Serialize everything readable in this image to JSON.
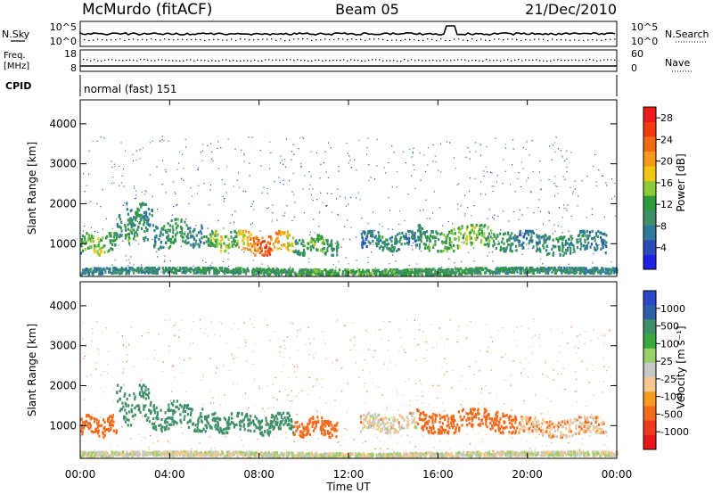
{
  "header": {
    "station": "McMurdo (fitACF)",
    "beam": "Beam 05",
    "date": "21/Dec/2010"
  },
  "summary": {
    "nsky_label": "N.Sky",
    "nsky_ticks": [
      "10^5",
      "10^0"
    ],
    "nsearch_label": "N.Search",
    "nsearch_ticks": [
      "10^5",
      "10^0"
    ],
    "freq_label": "Freq.",
    "freq_unit": "[MHz]",
    "freq_ticks": [
      "18",
      "8"
    ],
    "nave_label": "Nave",
    "nave_ticks": [
      "60",
      "0"
    ],
    "cpid_label": "CPID",
    "cpid_value": "normal (fast) 151"
  },
  "colors": {
    "power_scale": [
      "#1f1fe6",
      "#2b4bb8",
      "#2d7a9c",
      "#3f8f6a",
      "#2e9a3c",
      "#8acb3a",
      "#f2c80f",
      "#f59a1a",
      "#f26a14",
      "#f23c10",
      "#ee1a1a"
    ],
    "velocity_scale": [
      "#e81818",
      "#f03a1e",
      "#f36a1c",
      "#f79a22",
      "#f6c890",
      "#c8c8c8",
      "#9ad06a",
      "#3aa83a",
      "#3f8f6a",
      "#2b5fa8",
      "#2a48c8"
    ]
  },
  "chart_data": [
    {
      "type": "heatmap",
      "name": "power",
      "x_unit": "hours UT",
      "xlim": [
        0,
        24
      ],
      "xticks": [
        "00:00",
        "04:00",
        "08:00",
        "12:00",
        "16:00",
        "20:00",
        "00:00"
      ],
      "ylabel": "Slant Range [km]",
      "ylim": [
        180,
        4600
      ],
      "yticks": [
        1000,
        2000,
        3000,
        4000
      ],
      "colorbar_label": "Power [dB]",
      "colorbar_ticks": [
        "4",
        "8",
        "12",
        "16",
        "20",
        "24",
        "28"
      ],
      "colorbar_range": [
        0,
        30
      ],
      "echo_bands": [
        {
          "t0": 0.0,
          "t1": 1.6,
          "r0": 700,
          "r1": 1250,
          "level": 14
        },
        {
          "t0": 1.6,
          "t1": 3.0,
          "r0": 1000,
          "r1": 1700,
          "level": 11
        },
        {
          "t0": 2.0,
          "t1": 3.2,
          "r0": 1400,
          "r1": 2000,
          "level": 9
        },
        {
          "t0": 3.2,
          "t1": 5.5,
          "r0": 850,
          "r1": 1600,
          "level": 10
        },
        {
          "t0": 5.5,
          "t1": 7.0,
          "r0": 800,
          "r1": 1300,
          "level": 14
        },
        {
          "t0": 7.0,
          "t1": 9.5,
          "r0": 700,
          "r1": 1300,
          "level": 22
        },
        {
          "t0": 9.5,
          "t1": 11.5,
          "r0": 700,
          "r1": 1200,
          "level": 12
        },
        {
          "t0": 12.5,
          "t1": 15.0,
          "r0": 800,
          "r1": 1300,
          "level": 9
        },
        {
          "t0": 15.0,
          "t1": 19.5,
          "r0": 800,
          "r1": 1450,
          "level": 13
        },
        {
          "t0": 19.5,
          "t1": 23.5,
          "r0": 700,
          "r1": 1300,
          "level": 9
        },
        {
          "t0": 0.0,
          "t1": 24.0,
          "r0": 200,
          "r1": 380,
          "level": 11
        }
      ]
    },
    {
      "type": "heatmap",
      "name": "velocity",
      "x_unit": "hours UT",
      "xlim": [
        0,
        24
      ],
      "xticks": [
        "00:00",
        "04:00",
        "08:00",
        "12:00",
        "16:00",
        "20:00",
        "00:00"
      ],
      "xlabel": "Time UT",
      "ylabel": "Slant Range [km]",
      "ylim": [
        180,
        4600
      ],
      "yticks": [
        1000,
        2000,
        3000,
        4000
      ],
      "colorbar_label": "Velocity [m s⁻¹]",
      "colorbar_ticks": [
        "1000",
        "500",
        "100",
        "25",
        "-25",
        "-100",
        "-500",
        "-1000"
      ],
      "echo_bands": [
        {
          "t0": 0.0,
          "t1": 1.6,
          "r0": 700,
          "r1": 1250,
          "v": -200
        },
        {
          "t0": 1.6,
          "t1": 3.2,
          "r0": 1000,
          "r1": 2000,
          "v": 250
        },
        {
          "t0": 3.2,
          "t1": 5.5,
          "r0": 850,
          "r1": 1600,
          "v": 250
        },
        {
          "t0": 5.5,
          "t1": 7.0,
          "r0": 800,
          "r1": 1300,
          "v": 250
        },
        {
          "t0": 7.0,
          "t1": 9.5,
          "r0": 750,
          "r1": 1300,
          "v": 250
        },
        {
          "t0": 9.5,
          "t1": 11.5,
          "r0": 700,
          "r1": 1200,
          "v": -200
        },
        {
          "t0": 12.5,
          "t1": 15.0,
          "r0": 800,
          "r1": 1300,
          "v": -30
        },
        {
          "t0": 15.0,
          "t1": 19.5,
          "r0": 800,
          "r1": 1400,
          "v": -250
        },
        {
          "t0": 19.5,
          "t1": 23.5,
          "r0": 700,
          "r1": 1200,
          "v": -80
        },
        {
          "t0": 0.0,
          "t1": 24.0,
          "r0": 200,
          "r1": 330,
          "v": 0
        }
      ]
    }
  ]
}
